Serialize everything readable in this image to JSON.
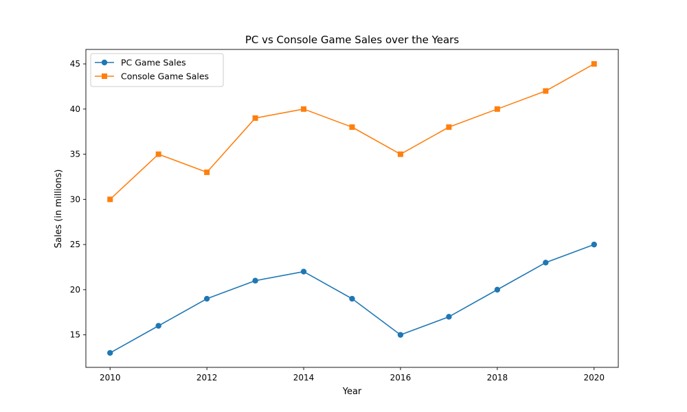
{
  "chart_data": {
    "type": "line",
    "title": "PC vs Console Game Sales over the Years",
    "xlabel": "Year",
    "ylabel": "Sales (in millions)",
    "x": [
      2010,
      2011,
      2012,
      2013,
      2014,
      2015,
      2016,
      2017,
      2018,
      2019,
      2020
    ],
    "xlim": [
      2009.5,
      2020.5
    ],
    "ylim": [
      11.4,
      46.6
    ],
    "xticks": [
      2010,
      2012,
      2014,
      2016,
      2018,
      2020
    ],
    "yticks": [
      15,
      20,
      25,
      30,
      35,
      40,
      45
    ],
    "grid": false,
    "legend_position": "upper left",
    "series": [
      {
        "name": "PC Game Sales",
        "color": "#1f77b4",
        "marker": "circle",
        "values": [
          13,
          16,
          19,
          21,
          22,
          19,
          15,
          17,
          20,
          23,
          25
        ]
      },
      {
        "name": "Console Game Sales",
        "color": "#ff7f0e",
        "marker": "square",
        "values": [
          30,
          35,
          33,
          39,
          40,
          38,
          35,
          38,
          40,
          42,
          45
        ]
      }
    ]
  }
}
